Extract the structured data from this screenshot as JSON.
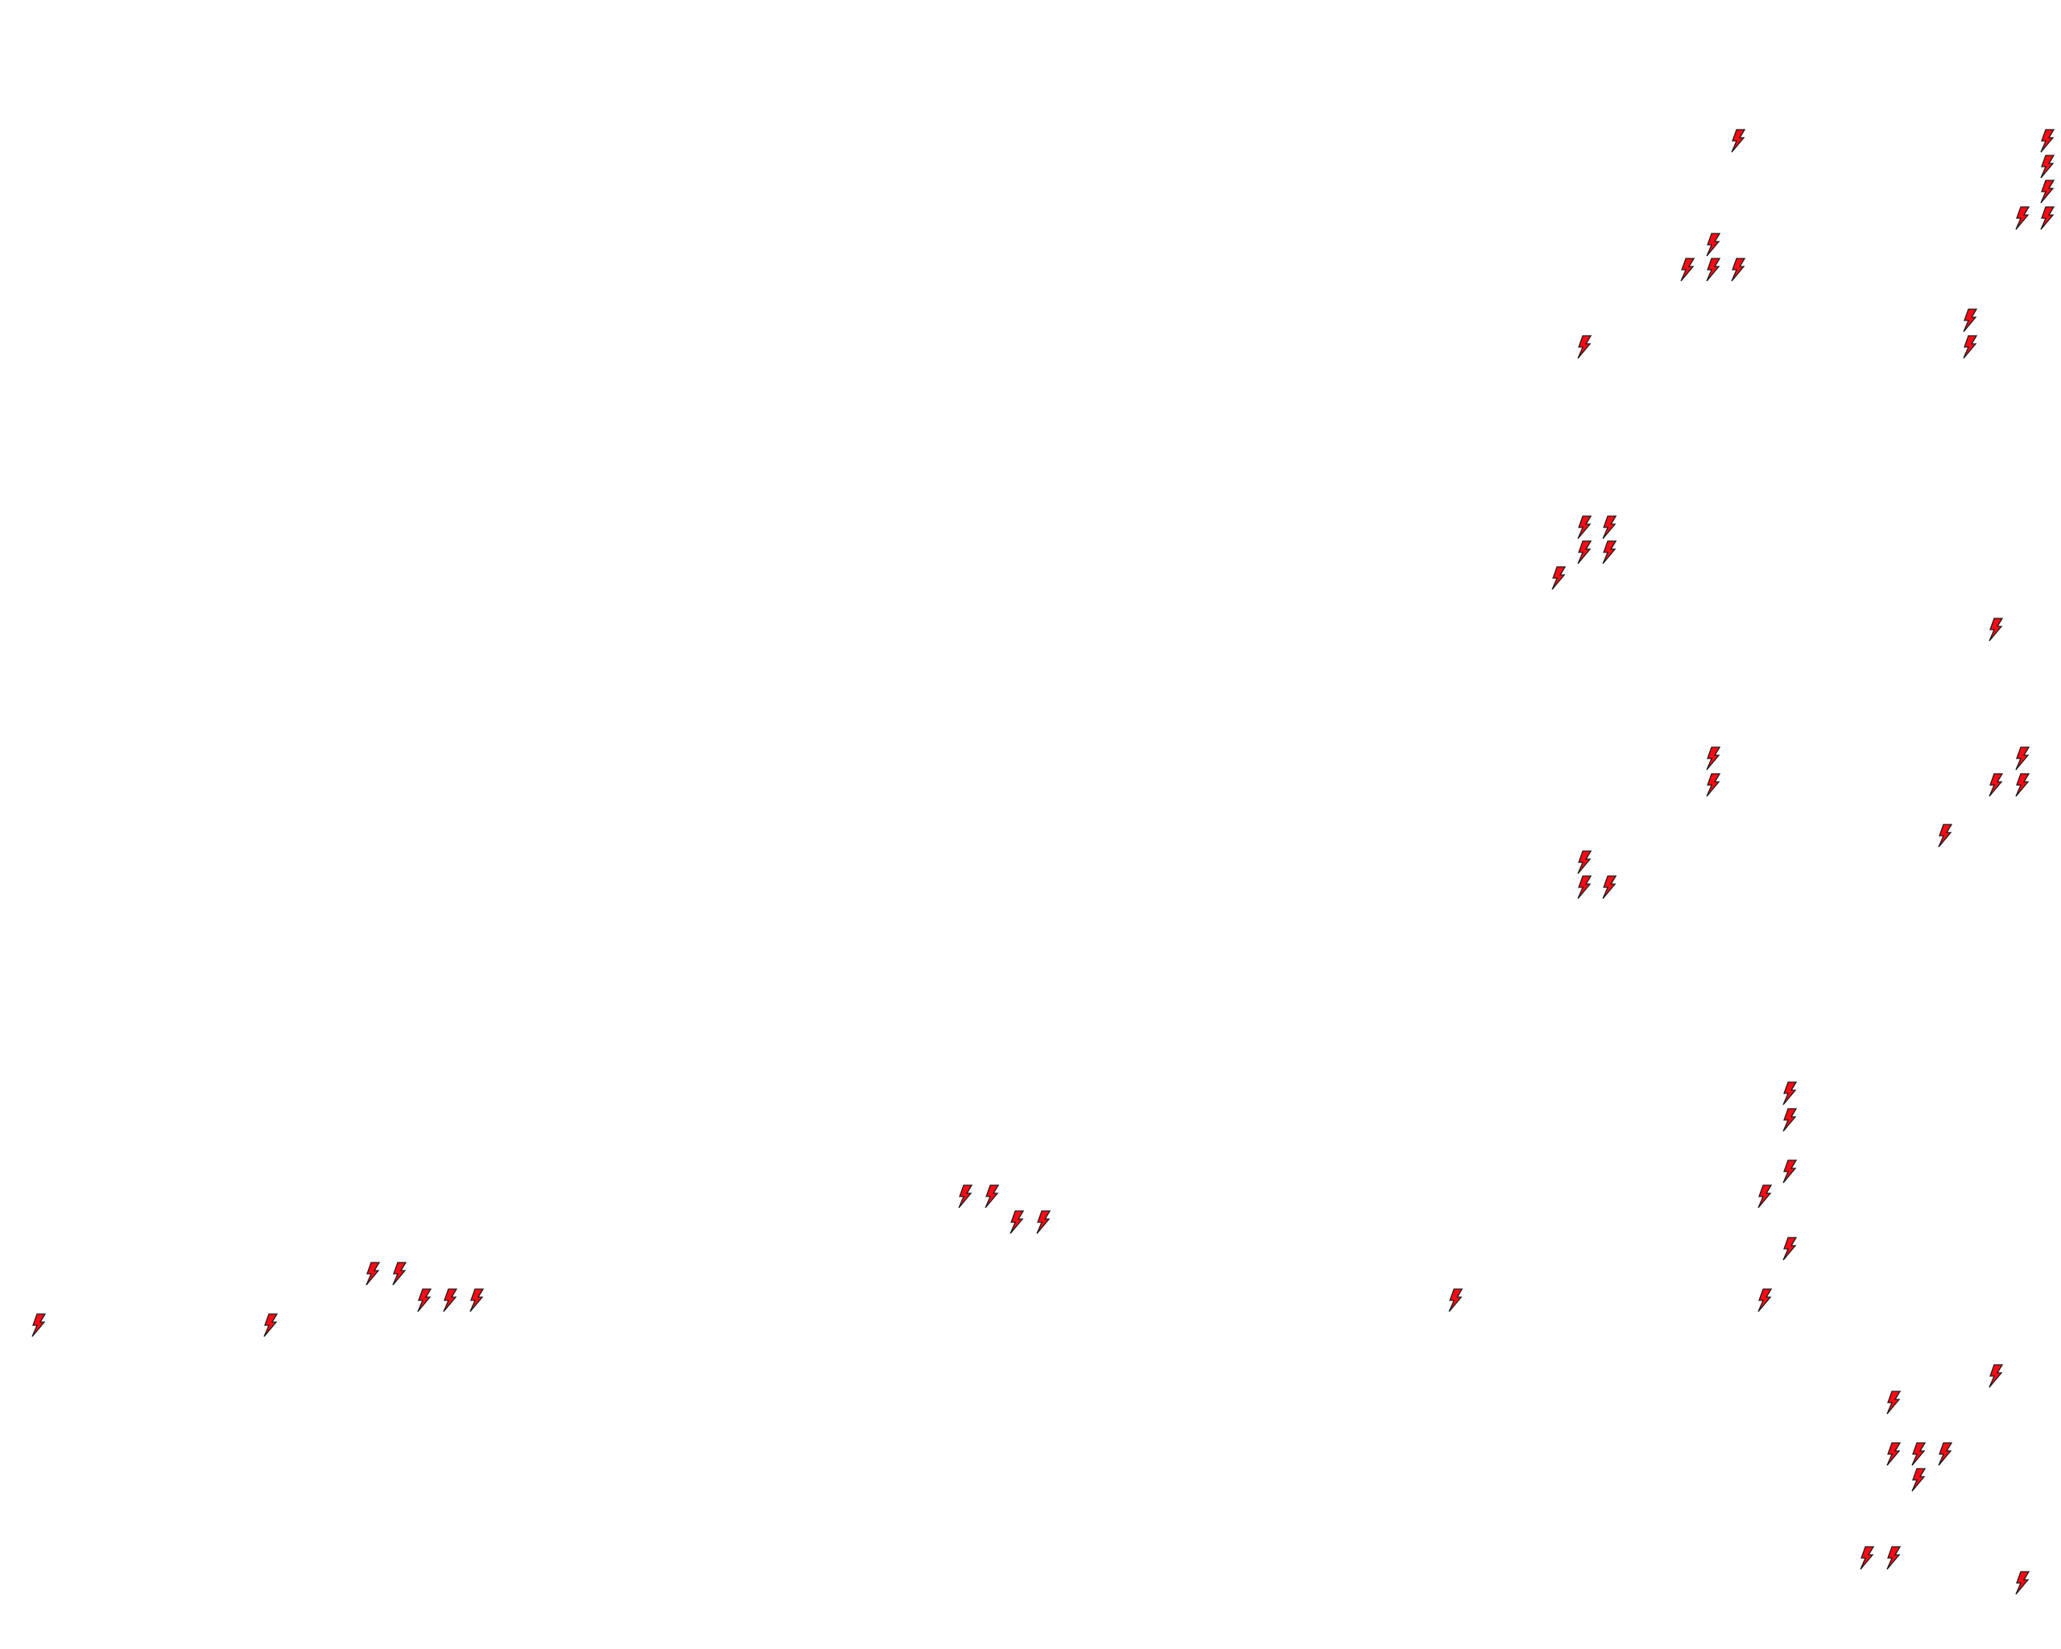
{
  "map": {
    "marker_icon": "lightning-bolt-icon",
    "marker_fill": "#ff0a14",
    "marker_stroke": "#1a1a1a",
    "background": "#ffffff"
  }
}
